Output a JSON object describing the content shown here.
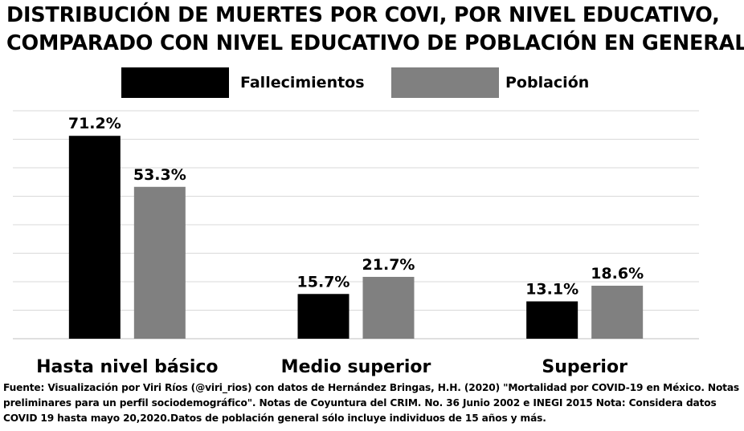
{
  "title_lines": [
    "DISTRIBUCIÓN DE MUERTES POR COVI, POR NIVEL EDUCATIVO,",
    "COMPARADO CON NIVEL EDUCATIVO DE POBLACIÓN EN GENERAL"
  ],
  "footer": "Fuente: Visualización por Viri Ríos (@viri_rios) con datos de Hernández Bringas, H.H. (2020) \"Mortalidad por COVID-19 en México. Notas preliminares para un perfil sociodemográfico\". Notas de Coyuntura del CRIM. No. 36 Junio 2002 e INEGI 2015 Nota: Considera datos COVID 19 hasta mayo 20,2020.Datos de población general sólo incluye individuos de 15 años y más.",
  "colors": {
    "fallecimientos": "#000000",
    "poblacion": "#808080",
    "grid": "#d9d9d9"
  },
  "chart_data": {
    "type": "bar",
    "categories": [
      "Hasta nivel básico",
      "Medio superior",
      "Superior"
    ],
    "series": [
      {
        "name": "Fallecimientos",
        "values": [
          71.2,
          15.7,
          13.1
        ],
        "labels": [
          "71.2%",
          "15.7%",
          "13.1%"
        ]
      },
      {
        "name": "Población",
        "values": [
          53.3,
          21.7,
          18.6
        ],
        "labels": [
          "53.3%",
          "21.7%",
          "18.6%"
        ]
      }
    ],
    "ylim": [
      0,
      80
    ],
    "grid": true,
    "legend": "top"
  }
}
